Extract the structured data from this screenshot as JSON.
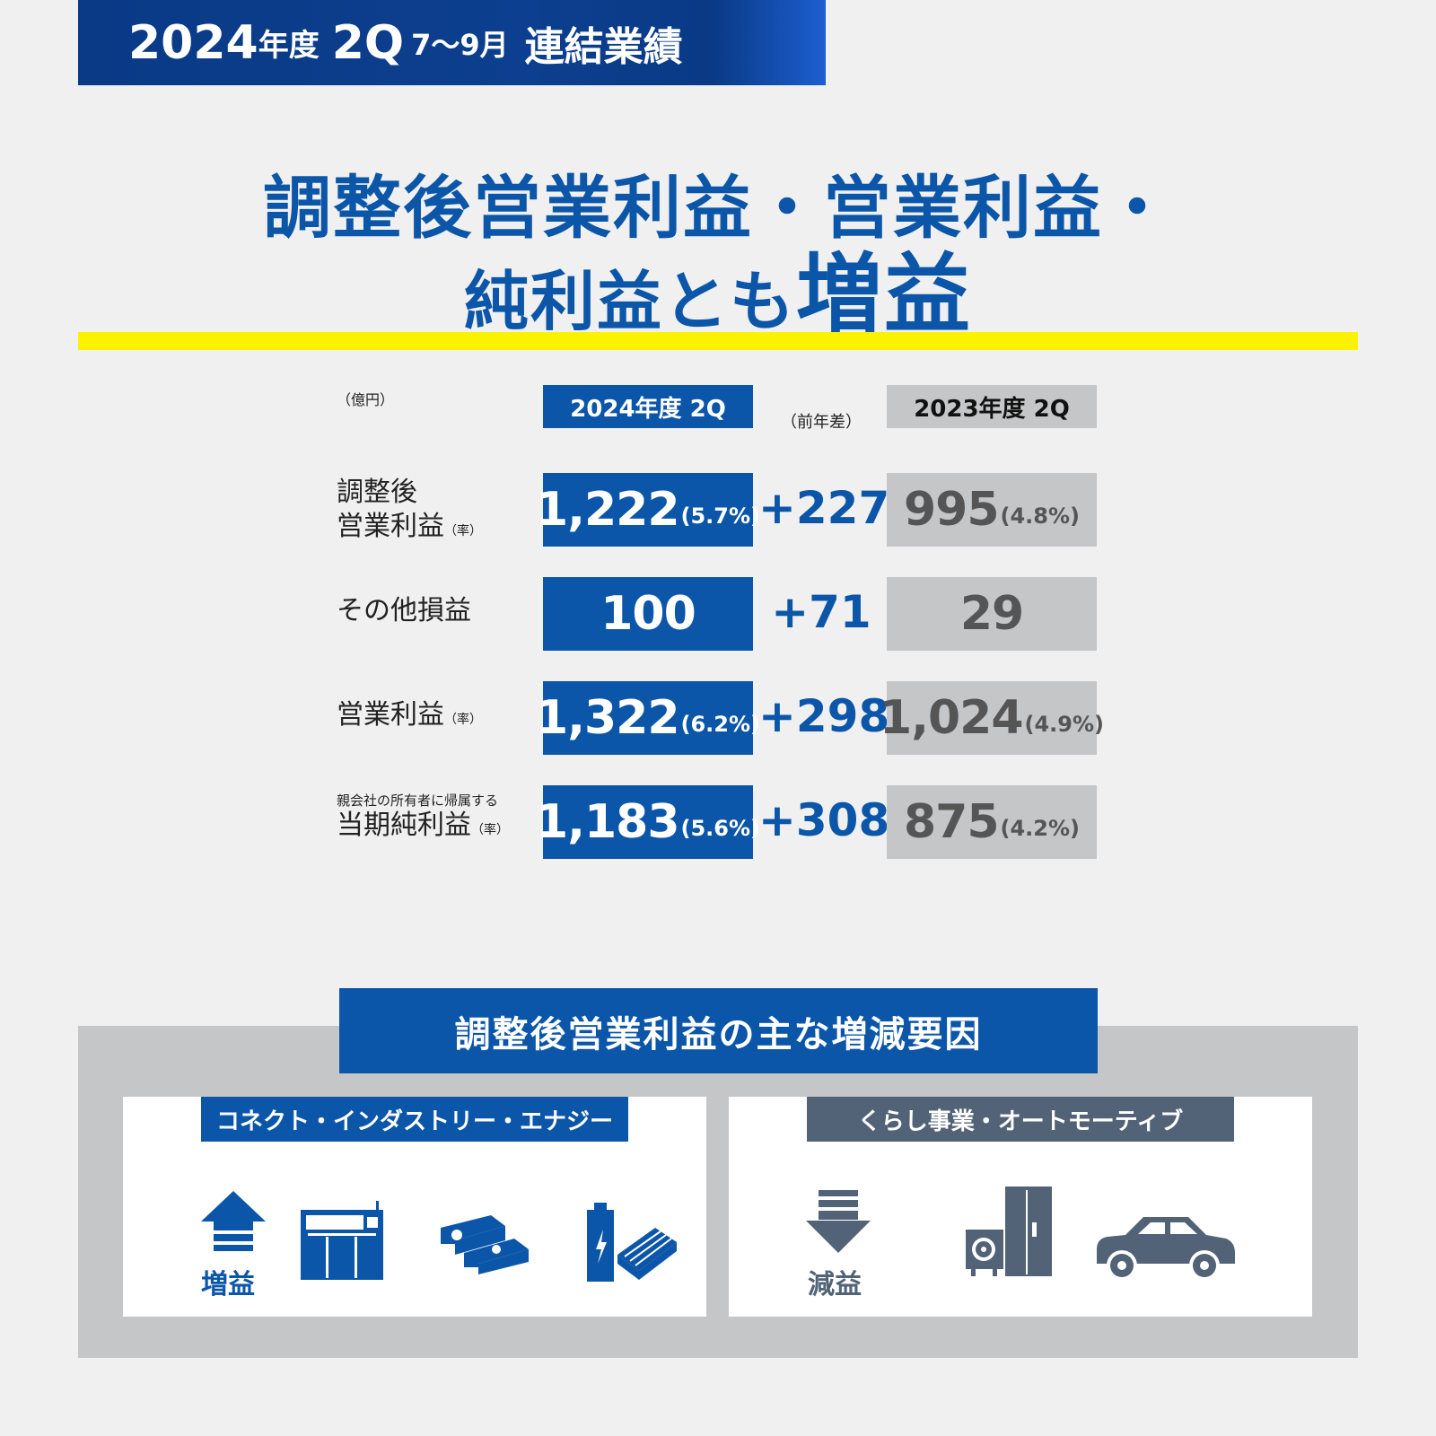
{
  "banner": {
    "year": "2024",
    "year_unit": "年度",
    "quarter": "2Q",
    "months": "7～9月",
    "title": "連結業績"
  },
  "headline": {
    "line1": "調整後営業利益・営業利益・",
    "line2_prefix": "純利益とも",
    "line2_emphasis": "増益"
  },
  "table": {
    "unit": "（億円）",
    "col_current": "2024年度 2Q",
    "col_diff": "（前年差）",
    "col_prev": "2023年度 2Q",
    "rows": [
      {
        "label_line1": "調整後",
        "label_line2": "営業利益",
        "note": "（率）",
        "current": "1,222",
        "current_rate": "(5.7%)",
        "diff": "+227",
        "prev": "995",
        "prev_rate": "(4.8%)"
      },
      {
        "label_line1": "その他損益",
        "current": "100",
        "diff": "+71",
        "prev": "29"
      },
      {
        "label_line1": "営業利益",
        "note": "（率）",
        "current": "1,322",
        "current_rate": "(6.2%)",
        "diff": "+298",
        "prev": "1,024",
        "prev_rate": "(4.9%)"
      },
      {
        "label_small": "親会社の所有者に帰属する",
        "label_line1": "当期純利益",
        "note": "（率）",
        "current": "1,183",
        "current_rate": "(5.6%)",
        "diff": "+308",
        "prev": "875",
        "prev_rate": "(4.2%)"
      }
    ]
  },
  "factors": {
    "title": "調整後営業利益の主な増減要因",
    "left": {
      "segment": "コネクト・インダストリー・エナジー",
      "label": "増益",
      "icons": [
        "up-arrow-icon",
        "industrial-equipment-icon",
        "battery-modules-icon",
        "battery-cell-icon"
      ]
    },
    "right": {
      "segment": "くらし事業・オートモーティブ",
      "label": "減益",
      "icons": [
        "down-arrow-icon",
        "heat-pump-icon",
        "car-icon"
      ]
    }
  },
  "colors": {
    "brand_blue": "#0b56a8",
    "gray_cell": "#c4c6c7",
    "slate": "#526277",
    "accent_yellow": "#fbf200"
  }
}
